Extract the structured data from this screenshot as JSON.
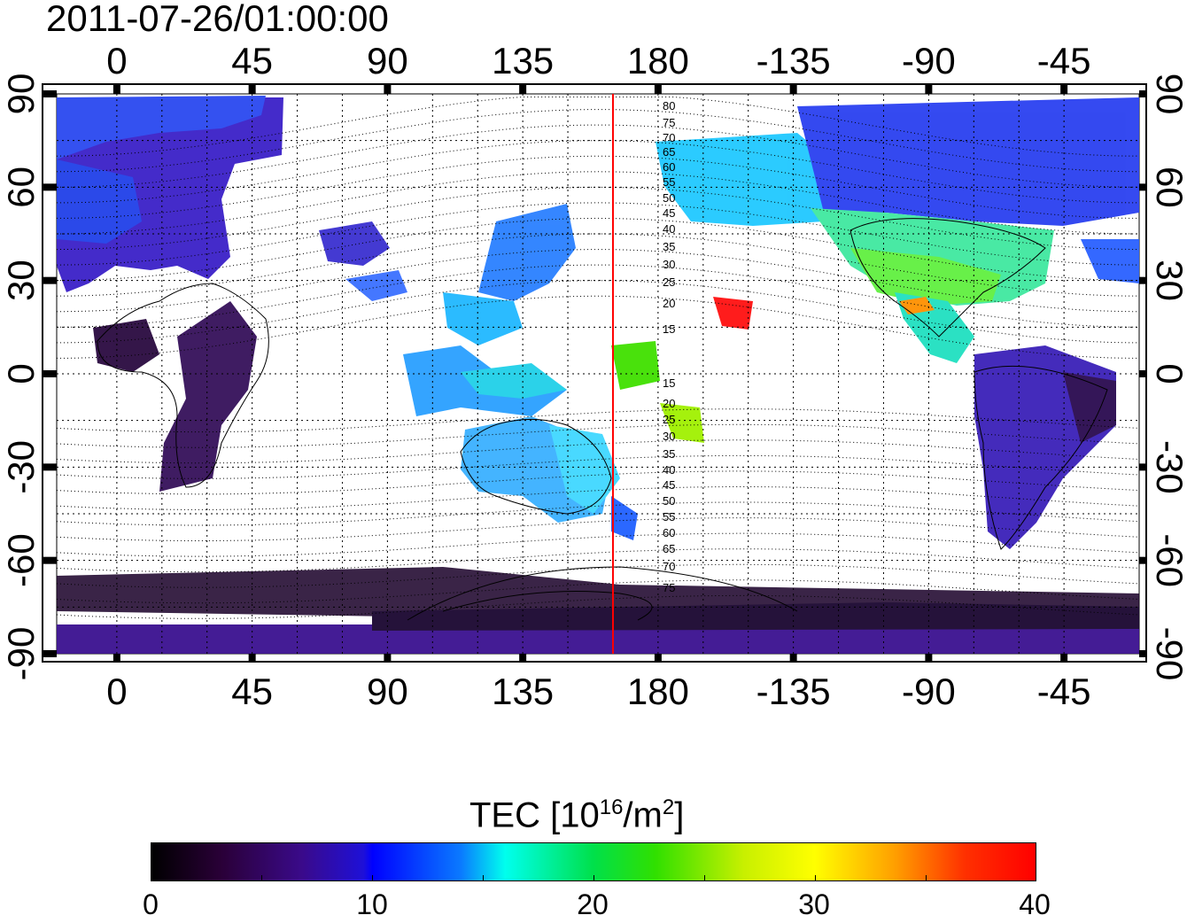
{
  "title": "2011-07-26/01:00:00",
  "map": {
    "lon_ticks": [
      "0",
      "45",
      "90",
      "135",
      "180",
      "-135",
      "-90",
      "-45"
    ],
    "lat_ticks": [
      "90",
      "60",
      "30",
      "0",
      "-30",
      "-60",
      "-90"
    ],
    "maglat_labels": [
      "80",
      "75",
      "70",
      "65",
      "60",
      "55",
      "50",
      "45",
      "40",
      "35",
      "30",
      "25",
      "20",
      "15",
      "15",
      "20",
      "25",
      "30",
      "35",
      "40",
      "45",
      "50",
      "55",
      "60",
      "65",
      "70",
      "75"
    ],
    "terminator_lon": 165,
    "colors": {
      "frame": "#000000",
      "grid": "#000000",
      "terminator": "#ff0000"
    }
  },
  "colorbar": {
    "label": "TEC  [10",
    "label_exp": "16",
    "label_unit": "/m",
    "label_unit_exp": "2",
    "label_end": "]",
    "range": [
      0,
      40
    ],
    "tick_labels": [
      "0",
      "10",
      "20",
      "30",
      "40"
    ],
    "colormap": [
      "#000000",
      "#3a0a8a",
      "#0000ff",
      "#00ffee",
      "#00e04a",
      "#ffff00",
      "#ff0000"
    ]
  }
}
